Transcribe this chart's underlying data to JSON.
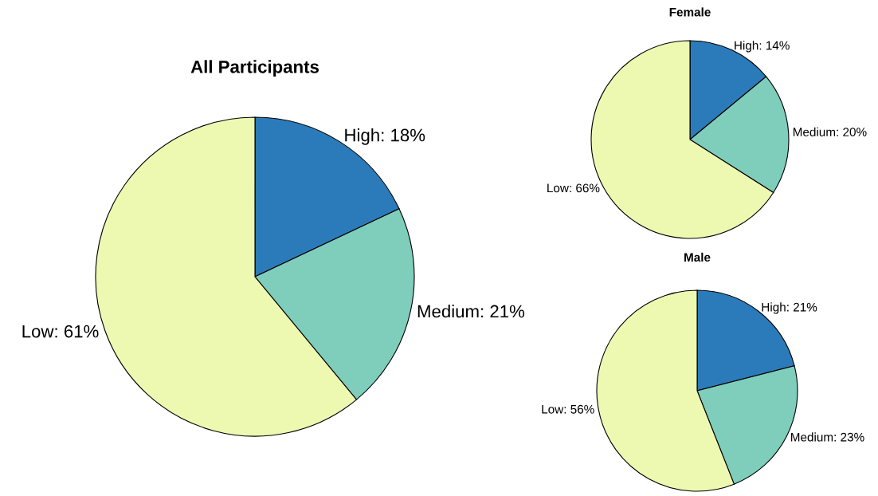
{
  "chart_data": [
    {
      "type": "pie",
      "title": "All Participants",
      "categories": [
        "High",
        "Medium",
        "Low"
      ],
      "values": [
        18,
        21,
        61
      ],
      "value_labels": [
        "18%",
        "21%",
        "61%"
      ],
      "colors": [
        "#2b7bba",
        "#7fcdbb",
        "#edf8b1"
      ]
    },
    {
      "type": "pie",
      "title": "Female",
      "categories": [
        "High",
        "Medium",
        "Low"
      ],
      "values": [
        14,
        20,
        66
      ],
      "value_labels": [
        "14%",
        "20%",
        "66%"
      ],
      "colors": [
        "#2b7bba",
        "#7fcdbb",
        "#edf8b1"
      ]
    },
    {
      "type": "pie",
      "title": "Male",
      "categories": [
        "High",
        "Medium",
        "Low"
      ],
      "values": [
        21,
        23,
        56
      ],
      "value_labels": [
        "21%",
        "23%",
        "56%"
      ],
      "colors": [
        "#2b7bba",
        "#7fcdbb",
        "#edf8b1"
      ]
    }
  ]
}
